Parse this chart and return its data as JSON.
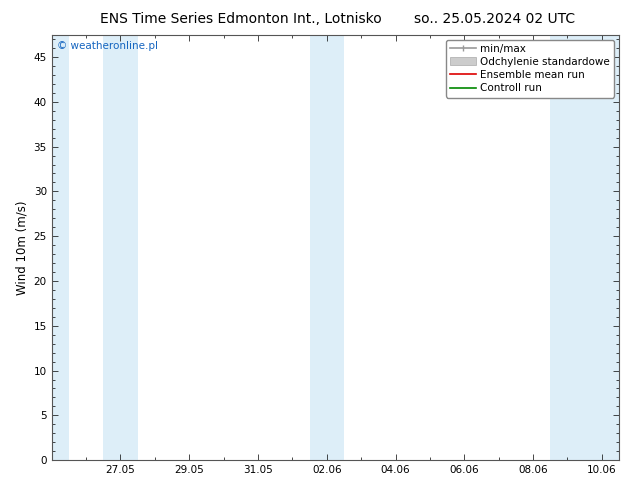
{
  "title_left": "ENS Time Series Edmonton Int., Lotnisko",
  "title_right": "so.. 25.05.2024 02 UTC",
  "ylabel": "Wind 10m (m/s)",
  "ylim": [
    0,
    47.5
  ],
  "yticks": [
    0,
    5,
    10,
    15,
    20,
    25,
    30,
    35,
    40,
    45
  ],
  "xtick_labels": [
    "27.05",
    "29.05",
    "31.05",
    "02.06",
    "04.06",
    "06.06",
    "08.06",
    "10.06"
  ],
  "xtick_positions": [
    2,
    4,
    6,
    8,
    10,
    12,
    14,
    16
  ],
  "xlim": [
    0,
    16.5
  ],
  "shade_bands": [
    [
      0,
      0.5
    ],
    [
      1.5,
      2.5
    ],
    [
      7.5,
      8.5
    ],
    [
      14.5,
      16.5
    ]
  ],
  "shade_color": "#ddeef8",
  "background_color": "#ffffff",
  "plot_bg_color": "#ffffff",
  "watermark": "© weatheronline.pl",
  "watermark_color": "#1565c0",
  "title_fontsize": 10,
  "tick_fontsize": 7.5,
  "ylabel_fontsize": 8.5,
  "ensemble_mean_color": "#dd0000",
  "control_run_color": "#008800",
  "minmax_line_color": "#999999",
  "std_patch_color": "#cccccc",
  "legend_fontsize": 7.5
}
